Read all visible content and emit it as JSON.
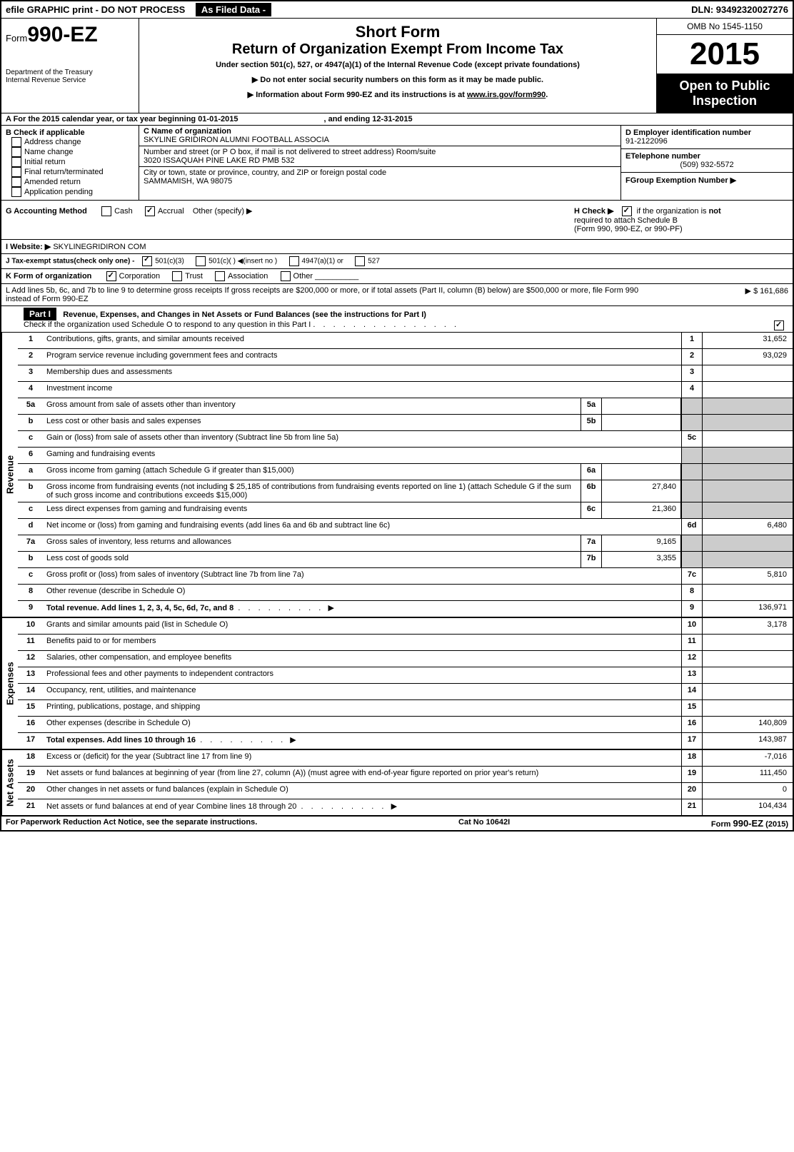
{
  "colors": {
    "black": "#000000",
    "white": "#ffffff",
    "gray": "#cccccc"
  },
  "topbar": {
    "left": "efile GRAPHIC print - DO NOT PROCESS",
    "center": "As Filed Data -",
    "right": "DLN: 93492320027276"
  },
  "header": {
    "form_prefix": "Form",
    "form_number": "990-EZ",
    "dept": "Department of the Treasury\nInternal Revenue Service",
    "short_form": "Short Form",
    "title": "Return of Organization Exempt From Income Tax",
    "under": "Under section 501(c), 527, or 4947(a)(1) of the Internal Revenue Code (except private foundations)",
    "note1": "▶ Do not enter social security numbers on this form as it may be made public.",
    "note2_prefix": "▶ Information about Form 990-EZ and its instructions is at ",
    "note2_link": "www.irs.gov/form990",
    "note2_suffix": ".",
    "omb": "OMB No 1545-1150",
    "year": "2015",
    "inspection": "Open to Public Inspection"
  },
  "A": {
    "label": "A  For the 2015 calendar year, or tax year beginning 01-01-2015",
    "ending": ", and ending 12-31-2015"
  },
  "B": {
    "header": "B  Check if applicable",
    "items": [
      "Address change",
      "Name change",
      "Initial return",
      "Final return/terminated",
      "Amended return",
      "Application pending"
    ]
  },
  "C": {
    "name_label": "C Name of organization",
    "name": "SKYLINE GRIDIRON ALUMNI FOOTBALL ASSOCIA",
    "street_label": "Number and street (or P O box, if mail is not delivered to street address) Room/suite",
    "street": "3020 ISSAQUAH PINE LAKE RD PMB 532",
    "city_label": "City or town, state or province, country, and ZIP or foreign postal code",
    "city": "SAMMAMISH, WA  98075"
  },
  "D": {
    "label": "D Employer identification number",
    "value": "91-2122096"
  },
  "E": {
    "label": "ETelephone number",
    "value": "(509) 932-5572"
  },
  "F": {
    "label": "FGroup Exemption Number   ▶"
  },
  "G": {
    "label": "G Accounting Method",
    "cash": "Cash",
    "accrual": "Accrual",
    "other": "Other (specify) ▶"
  },
  "H": {
    "line1": "H   Check ▶",
    "line1b": "if the organization is",
    "not": "not",
    "line2": "required to attach Schedule B",
    "line3": "(Form 990, 990-EZ, or 990-PF)"
  },
  "I": {
    "label": "I Website: ▶",
    "value": "SKYLINEGRIDIRON COM"
  },
  "J": {
    "label": "J Tax-exempt status(check only one) -",
    "opt1": "501(c)(3)",
    "opt2": "501(c)( )  ◀(insert no )",
    "opt3": "4947(a)(1) or",
    "opt4": "527"
  },
  "K": {
    "label": "K Form of organization",
    "opts": [
      "Corporation",
      "Trust",
      "Association",
      "Other"
    ]
  },
  "L": {
    "text": "L Add lines 5b, 6c, and 7b to line 9 to determine gross receipts  If gross receipts are $200,000 or more, or if total assets (Part II, column (B) below) are $500,000 or more, file Form 990 instead of Form 990-EZ",
    "value": "▶ $ 161,686"
  },
  "part1": {
    "header": "Part I",
    "title": "Revenue, Expenses, and Changes in Net Assets or Fund Balances (see the instructions for Part I)",
    "check": "Check if the organization used Schedule O to respond to any question in this Part I"
  },
  "sections": {
    "revenue": "Revenue",
    "expenses": "Expenses",
    "netassets": "Net Assets"
  },
  "lines": {
    "l1": {
      "n": "1",
      "d": "Contributions, gifts, grants, and similar amounts received",
      "box": "1",
      "v": "31,652"
    },
    "l2": {
      "n": "2",
      "d": "Program service revenue including government fees and contracts",
      "box": "2",
      "v": "93,029"
    },
    "l3": {
      "n": "3",
      "d": "Membership dues and assessments",
      "box": "3",
      "v": ""
    },
    "l4": {
      "n": "4",
      "d": "Investment income",
      "box": "4",
      "v": ""
    },
    "l5a": {
      "n": "5a",
      "d": "Gross amount from sale of assets other than inventory",
      "sub": "5a",
      "sv": ""
    },
    "l5b": {
      "n": "b",
      "d": "Less  cost or other basis and sales expenses",
      "sub": "5b",
      "sv": ""
    },
    "l5c": {
      "n": "c",
      "d": "Gain or (loss) from sale of assets other than inventory (Subtract line 5b from line 5a)",
      "box": "5c",
      "v": ""
    },
    "l6": {
      "n": "6",
      "d": "Gaming and fundraising events"
    },
    "l6a": {
      "n": "a",
      "d": "Gross income from gaming (attach Schedule G if greater than $15,000)",
      "sub": "6a",
      "sv": ""
    },
    "l6b": {
      "n": "b",
      "d": "Gross income from fundraising events (not including $  25,185     of contributions from fundraising events reported on line 1) (attach Schedule G if the sum of such gross income and contributions exceeds $15,000)",
      "sub": "6b",
      "sv": "27,840"
    },
    "l6c": {
      "n": "c",
      "d": "Less  direct expenses from gaming and fundraising events",
      "sub": "6c",
      "sv": "21,360"
    },
    "l6d": {
      "n": "d",
      "d": "Net income or (loss) from gaming and fundraising events (add lines 6a and 6b and subtract line 6c)",
      "box": "6d",
      "v": "6,480"
    },
    "l7a": {
      "n": "7a",
      "d": "Gross sales of inventory, less returns and allowances",
      "sub": "7a",
      "sv": "9,165"
    },
    "l7b": {
      "n": "b",
      "d": "Less  cost of goods sold",
      "sub": "7b",
      "sv": "3,355"
    },
    "l7c": {
      "n": "c",
      "d": "Gross profit or (loss) from sales of inventory (Subtract line 7b from line 7a)",
      "box": "7c",
      "v": "5,810"
    },
    "l8": {
      "n": "8",
      "d": "Other revenue (describe in Schedule O)",
      "box": "8",
      "v": ""
    },
    "l9": {
      "n": "9",
      "d": "Total revenue. Add lines 1, 2, 3, 4, 5c, 6d, 7c, and 8",
      "box": "9",
      "v": "136,971",
      "bold": true,
      "arrow": true
    },
    "l10": {
      "n": "10",
      "d": "Grants and similar amounts paid (list in Schedule O)",
      "box": "10",
      "v": "3,178"
    },
    "l11": {
      "n": "11",
      "d": "Benefits paid to or for members",
      "box": "11",
      "v": ""
    },
    "l12": {
      "n": "12",
      "d": "Salaries, other compensation, and employee benefits",
      "box": "12",
      "v": ""
    },
    "l13": {
      "n": "13",
      "d": "Professional fees and other payments to independent contractors",
      "box": "13",
      "v": ""
    },
    "l14": {
      "n": "14",
      "d": "Occupancy, rent, utilities, and maintenance",
      "box": "14",
      "v": ""
    },
    "l15": {
      "n": "15",
      "d": "Printing, publications, postage, and shipping",
      "box": "15",
      "v": ""
    },
    "l16": {
      "n": "16",
      "d": "Other expenses (describe in Schedule O)",
      "box": "16",
      "v": "140,809"
    },
    "l17": {
      "n": "17",
      "d": "Total expenses. Add lines 10 through 16",
      "box": "17",
      "v": "143,987",
      "bold": true,
      "arrow": true
    },
    "l18": {
      "n": "18",
      "d": "Excess or (deficit) for the year (Subtract line 17 from line 9)",
      "box": "18",
      "v": "-7,016"
    },
    "l19": {
      "n": "19",
      "d": "Net assets or fund balances at beginning of year (from line 27, column (A)) (must agree with end-of-year figure reported on prior year's return)",
      "box": "19",
      "v": "111,450"
    },
    "l20": {
      "n": "20",
      "d": "Other changes in net assets or fund balances (explain in Schedule O)",
      "box": "20",
      "v": "0"
    },
    "l21": {
      "n": "21",
      "d": "Net assets or fund balances at end of year  Combine lines 18 through 20",
      "box": "21",
      "v": "104,434",
      "arrow": true
    }
  },
  "footer": {
    "left": "For Paperwork Reduction Act Notice, see the separate instructions.",
    "center": "Cat No 10642I",
    "right": "Form 990-EZ (2015)"
  }
}
